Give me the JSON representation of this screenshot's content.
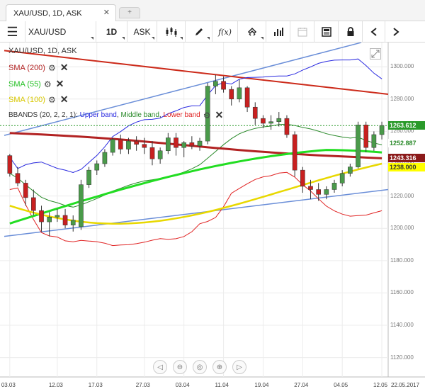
{
  "tab": {
    "title": "XAU/USD, 1D, ASK",
    "close": "✕",
    "add": "+"
  },
  "toolbar": {
    "menu": "☰",
    "symbol": "XAU/USD",
    "interval": "1D",
    "price_type": "ASK",
    "fx": "f(x)"
  },
  "legend": {
    "instrument": "XAU/USD, 1D, ASK",
    "sma200": "SMA (200)",
    "sma55": "SMA (55)",
    "sma100": "SMA (100)",
    "bbands_prefix": "BBANDS (20, 2, 2, 1): ",
    "bbands_upper": "Upper band",
    "bbands_middle": "Middle band",
    "bbands_lower": "Lower band",
    "sep": ", "
  },
  "colors": {
    "sma200": "#b22222",
    "sma55": "#22dd22",
    "sma100": "#e8d800",
    "upper": "#2a2ae0",
    "middle": "#2a8a2a",
    "lower": "#e02222",
    "channel_top": "#6a8ed8",
    "channel_bottom": "#6a8ed8",
    "resistance": "#cc2a1a",
    "bull": "#4a9a4a",
    "bear": "#c82020"
  },
  "chart_data": {
    "type": "candlestick",
    "y_ticks": [
      "1300.000",
      "1280.000",
      "1260.000",
      "1240.000",
      "1220.000",
      "1200.000",
      "1180.000",
      "1160.000",
      "1140.000",
      "1120.000"
    ],
    "x_labels": [
      "03.03",
      "12.03",
      "17.03",
      "27.03",
      "03.04",
      "11.04",
      "19.04",
      "27.04",
      "04.05",
      "12.05",
      "22.05.2017"
    ],
    "ylim": [
      1108,
      1315
    ],
    "price_tags": [
      {
        "value": "1263.612",
        "price": 1263.6,
        "bg": "#2a9a2a",
        "fg": "#ffffff"
      },
      {
        "value": "1252.887",
        "price": 1252.9,
        "bg": "#ffffff",
        "fg": "#2a8a2a"
      },
      {
        "value": "1243.316",
        "price": 1243.3,
        "bg": "#8b1a1a",
        "fg": "#ffffff"
      },
      {
        "value": "1238.000",
        "price": 1238.0,
        "bg": "#ffff00",
        "fg": "#333333"
      }
    ],
    "candles": [
      [
        1245,
        1246,
        1232,
        1234
      ],
      [
        1234,
        1238,
        1226,
        1228
      ],
      [
        1228,
        1230,
        1214,
        1219
      ],
      [
        1219,
        1224,
        1208,
        1211
      ],
      [
        1211,
        1214,
        1198,
        1204
      ],
      [
        1204,
        1210,
        1195,
        1207
      ],
      [
        1207,
        1212,
        1204,
        1208
      ],
      [
        1208,
        1212,
        1200,
        1202
      ],
      [
        1202,
        1208,
        1198,
        1205
      ],
      [
        1201,
        1230,
        1199,
        1227
      ],
      [
        1227,
        1238,
        1225,
        1236
      ],
      [
        1236,
        1242,
        1233,
        1240
      ],
      [
        1240,
        1249,
        1238,
        1247
      ],
      [
        1247,
        1256,
        1245,
        1255
      ],
      [
        1255,
        1258,
        1246,
        1249
      ],
      [
        1249,
        1256,
        1246,
        1254
      ],
      [
        1254,
        1257,
        1248,
        1252
      ],
      [
        1252,
        1256,
        1246,
        1250
      ],
      [
        1250,
        1254,
        1239,
        1243
      ],
      [
        1243,
        1250,
        1240,
        1248
      ],
      [
        1248,
        1259,
        1246,
        1256
      ],
      [
        1256,
        1259,
        1245,
        1250
      ],
      [
        1250,
        1254,
        1244,
        1253
      ],
      [
        1253,
        1257,
        1249,
        1251
      ],
      [
        1251,
        1256,
        1248,
        1254
      ],
      [
        1254,
        1290,
        1252,
        1288
      ],
      [
        1288,
        1295,
        1283,
        1291
      ],
      [
        1291,
        1294,
        1284,
        1286
      ],
      [
        1286,
        1288,
        1276,
        1280
      ],
      [
        1280,
        1292,
        1278,
        1287
      ],
      [
        1287,
        1288,
        1272,
        1275
      ],
      [
        1275,
        1278,
        1264,
        1268
      ],
      [
        1268,
        1270,
        1262,
        1265
      ],
      [
        1265,
        1270,
        1261,
        1266
      ],
      [
        1266,
        1272,
        1263,
        1268
      ],
      [
        1268,
        1270,
        1256,
        1258
      ],
      [
        1258,
        1260,
        1232,
        1236
      ],
      [
        1236,
        1238,
        1222,
        1226
      ],
      [
        1226,
        1230,
        1218,
        1224
      ],
      [
        1224,
        1228,
        1217,
        1221
      ],
      [
        1221,
        1226,
        1218,
        1224
      ],
      [
        1224,
        1230,
        1222,
        1228
      ],
      [
        1228,
        1236,
        1226,
        1234
      ],
      [
        1234,
        1240,
        1232,
        1238
      ],
      [
        1238,
        1266,
        1237,
        1264
      ],
      [
        1264,
        1266,
        1247,
        1250
      ],
      [
        1250,
        1260,
        1248,
        1258
      ],
      [
        1258,
        1266,
        1255,
        1263.6
      ]
    ]
  }
}
